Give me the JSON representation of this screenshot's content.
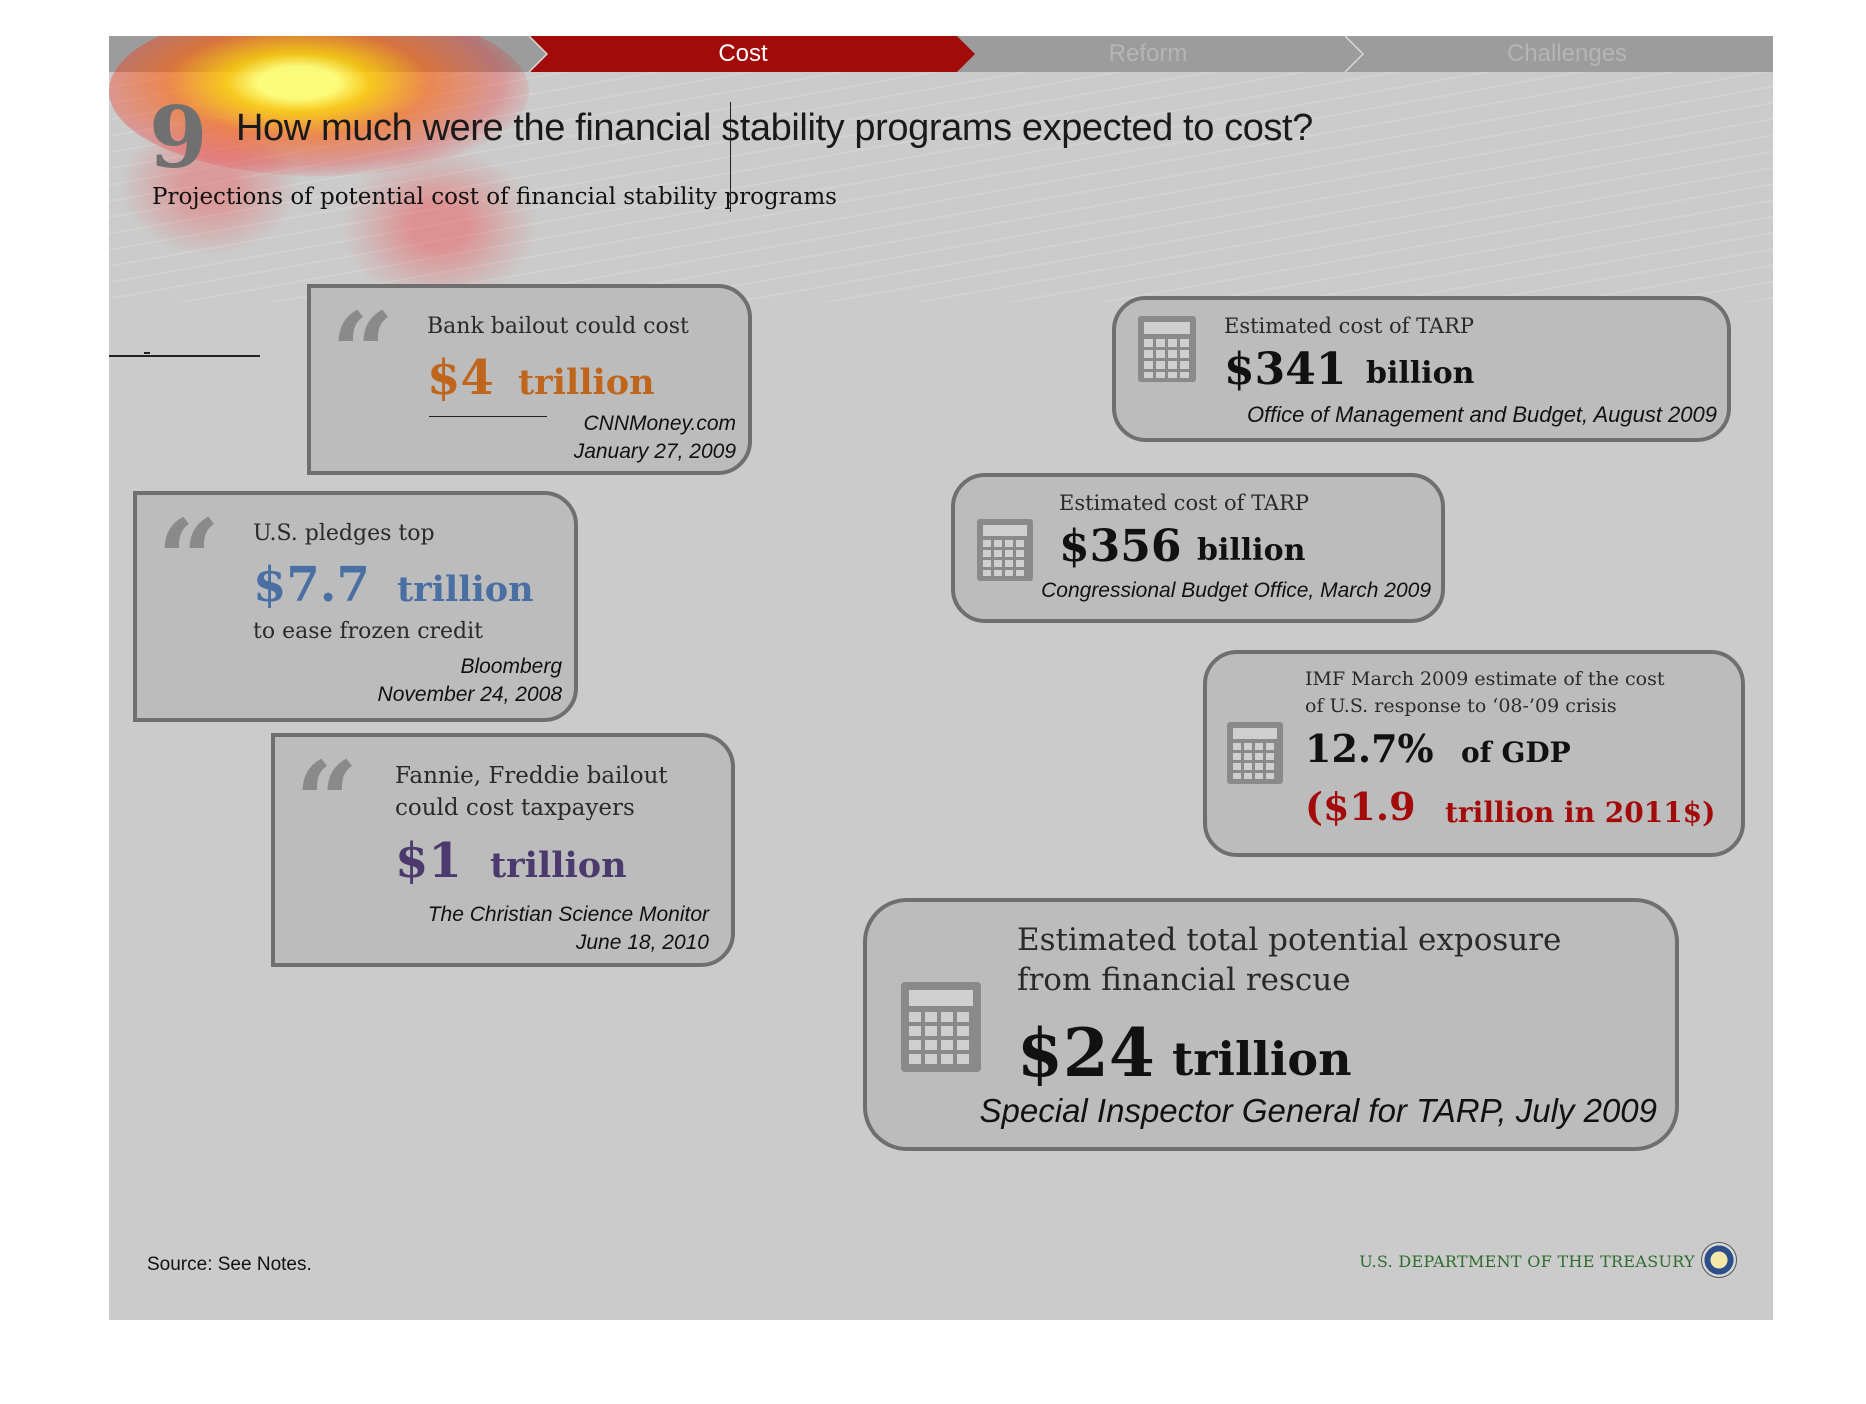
{
  "nav": {
    "tabs": [
      {
        "label": "Cost",
        "active": true
      },
      {
        "label": "Reform",
        "active": false
      },
      {
        "label": "Challenges",
        "active": false
      }
    ],
    "active_color": "#a30a0a",
    "inactive_color": "#9c9c9c"
  },
  "header": {
    "number": "9",
    "title": "How much were the financial stability programs expected to cost?",
    "subtitle": "Projections of potential cost of financial stability programs"
  },
  "quotes": [
    {
      "lead": "Bank bailout could cost",
      "amount": "$4",
      "unit": "trillion",
      "after": "",
      "source": "CNNMoney.com",
      "date": "January 27, 2009",
      "color": "#c0651c"
    },
    {
      "lead": "U.S. pledges top",
      "amount": "$7.7",
      "unit": "trillion",
      "after": "to ease frozen credit",
      "source": "Bloomberg",
      "date": "November 24, 2008",
      "color": "#4a6fa3"
    },
    {
      "lead_line1": "Fannie, Freddie bailout",
      "lead_line2": "could cost taxpayers",
      "amount": "$1",
      "unit": "trillion",
      "source": "The Christian Science Monitor",
      "date": "June 18, 2010",
      "color": "#4c3a6e"
    }
  ],
  "estimates": [
    {
      "label": "Estimated cost of TARP",
      "amount": "$341",
      "unit": "billion",
      "source": "Office of Management and Budget, August 2009"
    },
    {
      "label": "Estimated cost of TARP",
      "amount": "$356",
      "unit": "billion",
      "source": "Congressional Budget Office, March 2009"
    },
    {
      "label_line1": "IMF March 2009 estimate of the cost",
      "label_line2": "of U.S. response to ‘08-’09 crisis",
      "amount": "12.7%",
      "unit": "of GDP",
      "alt_amount": "($1.9",
      "alt_unit": "trillion in 2011$)",
      "alt_color": "#a30a0a"
    },
    {
      "label_line1": "Estimated total potential exposure",
      "label_line2": "from financial rescue",
      "amount": "$24",
      "unit": "trillion",
      "source": "Special Inspector General for TARP, July 2009"
    }
  ],
  "footer": {
    "source": "Source: See Notes.",
    "org": "U.S. DEPARTMENT OF THE TREASURY"
  },
  "icons": [
    "quote-mark-icon",
    "calculator-icon",
    "treasury-seal-icon"
  ]
}
